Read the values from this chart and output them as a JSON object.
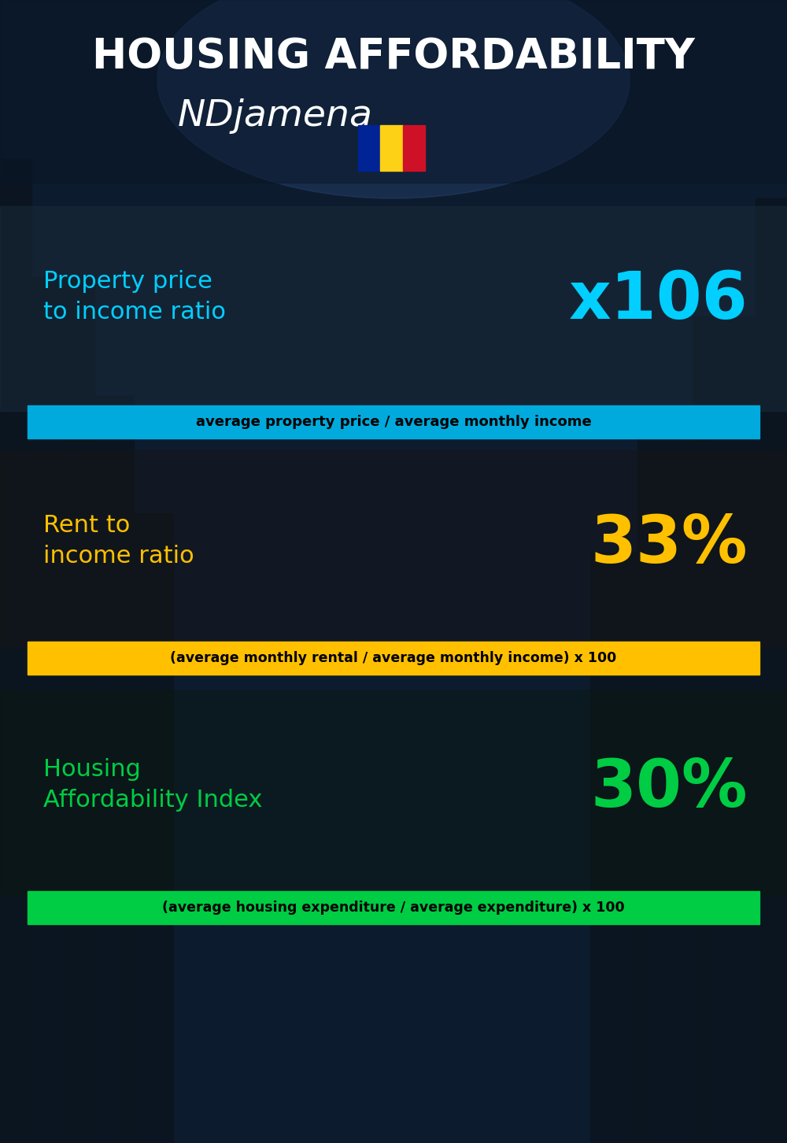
{
  "title_line1": "HOUSING AFFORDABILITY",
  "title_line2": "NDjamena",
  "bg_color": "#0a1628",
  "title_color": "#ffffff",
  "subtitle_color": "#ffffff",
  "section1_label": "Property price\nto income ratio",
  "section1_value": "x106",
  "section1_label_color": "#00cfff",
  "section1_value_color": "#00cfff",
  "section1_formula": "average property price / average monthly income",
  "section1_formula_bg": "#00aadd",
  "section1_formula_color": "#000000",
  "section2_label": "Rent to\nincome ratio",
  "section2_value": "33%",
  "section2_label_color": "#ffc000",
  "section2_value_color": "#ffc000",
  "section2_formula": "(average monthly rental / average monthly income) x 100",
  "section2_formula_bg": "#ffc000",
  "section2_formula_color": "#000000",
  "section3_label": "Housing\nAffordability Index",
  "section3_value": "30%",
  "section3_label_color": "#00cc44",
  "section3_value_color": "#00cc44",
  "section3_formula": "(average housing expenditure / average expenditure) x 100",
  "section3_formula_bg": "#00cc44",
  "section3_formula_color": "#000000",
  "flag_colors": [
    "#002395",
    "#fcd116",
    "#ce1126"
  ],
  "panel_bg": "rgba(20,30,50,0.55)"
}
